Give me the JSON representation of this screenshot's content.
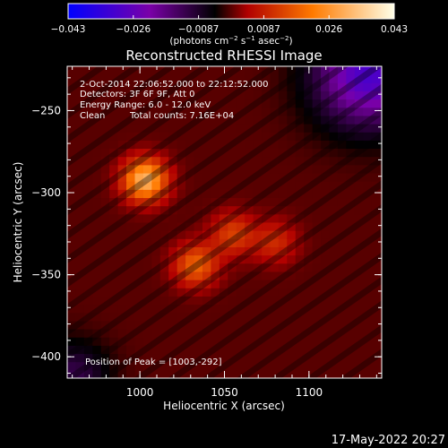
{
  "colorbar": {
    "ticks": [
      "−0.043",
      "−0.026",
      "−0.0087",
      "0.0087",
      "0.026",
      "0.043"
    ],
    "unit_prefix": "(photons cm",
    "unit_mid1": " s",
    "unit_mid2": " asec",
    "unit_suffix": ")",
    "exp1": "−2",
    "exp2": "−1",
    "exp3": "−2"
  },
  "footer": {
    "timestamp": "17-May-2022 20:27"
  },
  "chart_data": {
    "type": "heatmap",
    "title": "Reconstructed RHESSI Image",
    "xlabel": "Heliocentric X (arcsec)",
    "ylabel": "Heliocentric Y (arcsec)",
    "xlim": [
      957,
      1143
    ],
    "ylim": [
      -413,
      -223
    ],
    "x_ticks": [
      "1000",
      "1050",
      "1100"
    ],
    "x_tick_values": [
      1000,
      1050,
      1100
    ],
    "y_ticks": [
      "−250",
      "−300",
      "−350",
      "−400"
    ],
    "y_tick_values": [
      -250,
      -300,
      -350,
      -400
    ],
    "value_range": [
      -0.043,
      0.043
    ],
    "colormap": [
      "#0000ff",
      "#800080",
      "#000000",
      "#ff0000",
      "#ffa500",
      "#ffffff"
    ],
    "sources": [
      {
        "x": 1003,
        "y": -292,
        "peak": 0.043
      },
      {
        "x": 1033,
        "y": -344,
        "peak": 0.03
      },
      {
        "x": 1055,
        "y": -325,
        "peak": 0.025
      },
      {
        "x": 1080,
        "y": -330,
        "peak": 0.022
      }
    ],
    "annotations": {
      "time": "2-Oct-2014 22:06:52.000 to 22:12:52.000",
      "detectors": "Detectors: 3F 6F 9F, Att 0",
      "energy": "Energy Range: 6.0 - 12.0 keV",
      "method": "Clean",
      "counts": "Total counts: 7.16E+04",
      "peak": "Position of Peak = [1003,-292]"
    }
  }
}
